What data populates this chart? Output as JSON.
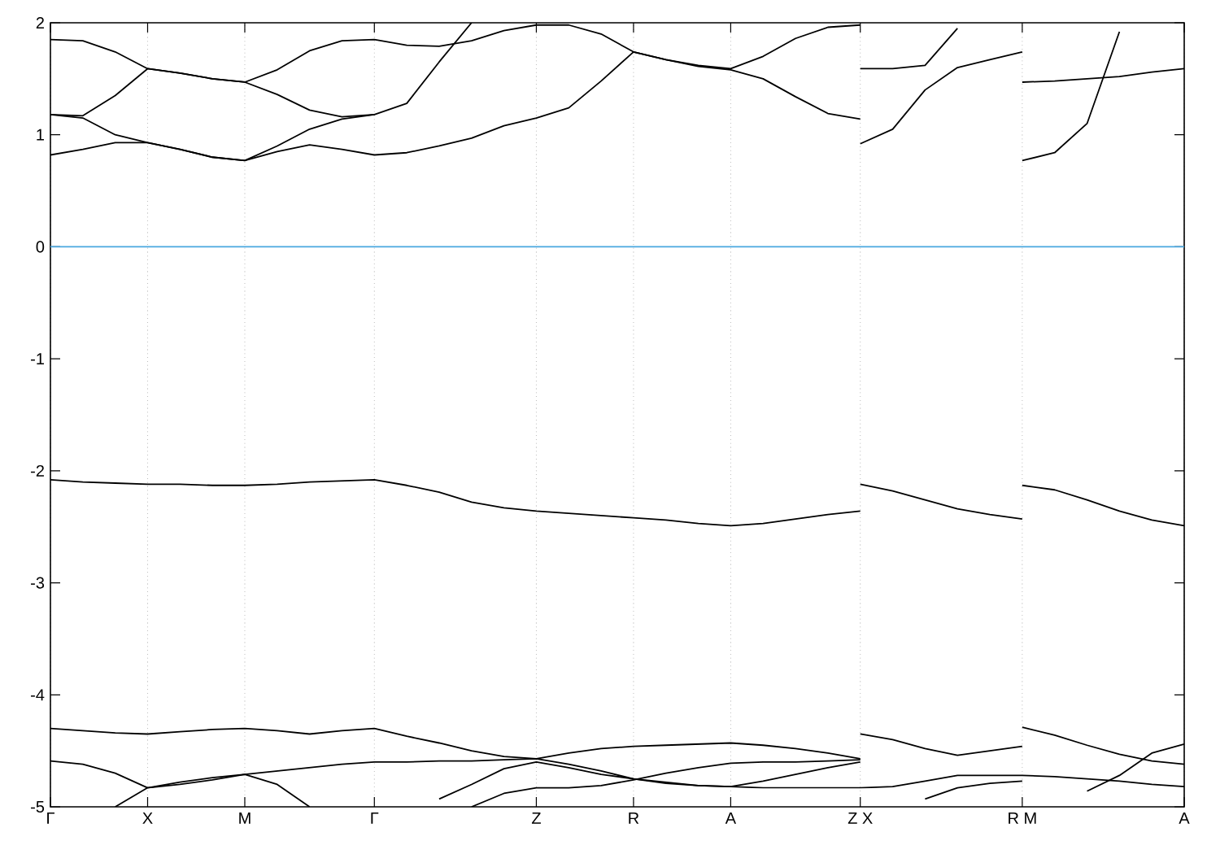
{
  "chart_data": {
    "type": "line",
    "ylim": [
      -5,
      2
    ],
    "categories": [
      "Γ",
      null,
      null,
      "X",
      null,
      null,
      "M",
      null,
      null,
      null,
      "Γ",
      null,
      null,
      null,
      null,
      "Z",
      null,
      null,
      "R",
      null,
      null,
      "A",
      null,
      null,
      null,
      "Z X",
      null,
      null,
      null,
      null,
      "R M",
      null,
      null,
      null,
      null,
      "A"
    ],
    "yticks": [
      -5,
      -4,
      -3,
      -2,
      -1,
      0,
      1,
      2
    ],
    "grid": "x",
    "ref_lines": [
      {
        "axis": "y",
        "value": 0,
        "color": "#4aa8e0"
      }
    ],
    "series": [
      {
        "color": "#000000",
        "values": [
          0.82,
          0.87,
          0.93,
          0.93,
          0.87,
          0.8,
          0.77,
          0.85,
          0.91,
          0.87,
          0.82,
          0.84,
          0.9,
          0.97,
          1.08,
          1.15,
          1.24,
          1.48,
          1.74,
          1.67,
          1.61,
          1.58,
          1.5,
          1.34,
          1.19,
          1.14,
          null,
          null,
          null,
          null,
          null,
          null,
          null,
          null,
          null,
          null
        ]
      },
      {
        "color": "#000000",
        "values": [
          null,
          null,
          null,
          null,
          null,
          null,
          null,
          null,
          null,
          null,
          null,
          null,
          null,
          null,
          null,
          null,
          null,
          null,
          null,
          null,
          null,
          null,
          null,
          null,
          null,
          0.92,
          1.05,
          1.4,
          1.6,
          1.67,
          1.74,
          null,
          null,
          null,
          null,
          null
        ]
      },
      {
        "color": "#000000",
        "values": [
          null,
          null,
          null,
          null,
          null,
          null,
          null,
          null,
          null,
          null,
          null,
          null,
          null,
          null,
          null,
          null,
          null,
          null,
          null,
          null,
          null,
          null,
          null,
          null,
          null,
          null,
          null,
          null,
          null,
          null,
          0.77,
          0.84,
          1.1,
          1.92,
          null,
          null
        ]
      },
      {
        "color": "#000000",
        "values": [
          1.18,
          1.15,
          1.0,
          0.93,
          0.87,
          0.8,
          0.77,
          0.9,
          1.05,
          1.14,
          1.18,
          1.28,
          1.65,
          2.0,
          null,
          null,
          null,
          null,
          null,
          null,
          null,
          null,
          null,
          null,
          null,
          null,
          null,
          null,
          null,
          null,
          null,
          null,
          null,
          null,
          null,
          null
        ]
      },
      {
        "color": "#000000",
        "values": [
          1.18,
          1.17,
          1.35,
          1.59,
          1.55,
          1.5,
          1.47,
          1.36,
          1.22,
          1.16,
          1.18,
          null,
          null,
          null,
          null,
          null,
          null,
          null,
          null,
          null,
          null,
          null,
          null,
          null,
          null,
          null,
          null,
          null,
          null,
          null,
          null,
          null,
          null,
          null,
          null,
          null
        ]
      },
      {
        "color": "#000000",
        "values": [
          1.85,
          1.84,
          1.74,
          1.59,
          1.55,
          1.5,
          1.47,
          1.58,
          1.75,
          1.84,
          1.85,
          1.8,
          1.79,
          1.84,
          1.93,
          1.98,
          1.98,
          1.9,
          1.74,
          1.67,
          1.62,
          1.59,
          1.7,
          1.86,
          1.96,
          1.98,
          null,
          null,
          null,
          null,
          null,
          null,
          null,
          null,
          null,
          null
        ]
      },
      {
        "color": "#000000",
        "values": [
          null,
          null,
          null,
          null,
          null,
          null,
          null,
          null,
          null,
          null,
          null,
          null,
          null,
          null,
          null,
          null,
          null,
          null,
          null,
          null,
          null,
          null,
          null,
          null,
          null,
          1.59,
          1.59,
          1.62,
          1.95,
          null,
          null,
          null,
          null,
          null,
          null,
          null
        ]
      },
      {
        "color": "#000000",
        "values": [
          null,
          null,
          null,
          null,
          null,
          null,
          null,
          null,
          null,
          null,
          null,
          null,
          null,
          null,
          null,
          null,
          null,
          null,
          null,
          null,
          null,
          null,
          null,
          null,
          null,
          null,
          null,
          null,
          null,
          null,
          1.47,
          1.48,
          1.5,
          1.52,
          1.56,
          1.59
        ]
      },
      {
        "color": "#000000",
        "values": [
          -2.08,
          -2.1,
          -2.11,
          -2.12,
          -2.12,
          -2.13,
          -2.13,
          -2.12,
          -2.1,
          -2.09,
          -2.08,
          -2.13,
          -2.19,
          -2.28,
          -2.33,
          -2.36,
          -2.38,
          -2.4,
          -2.42,
          -2.44,
          -2.47,
          -2.49,
          -2.47,
          -2.43,
          -2.39,
          -2.36,
          null,
          null,
          null,
          null,
          null,
          null,
          null,
          null,
          null,
          null
        ]
      },
      {
        "color": "#000000",
        "values": [
          null,
          null,
          null,
          null,
          null,
          null,
          null,
          null,
          null,
          null,
          null,
          null,
          null,
          null,
          null,
          null,
          null,
          null,
          null,
          null,
          null,
          null,
          null,
          null,
          null,
          -2.12,
          -2.18,
          -2.26,
          -2.34,
          -2.39,
          -2.43,
          null,
          null,
          null,
          null,
          null
        ]
      },
      {
        "color": "#000000",
        "values": [
          null,
          null,
          null,
          null,
          null,
          null,
          null,
          null,
          null,
          null,
          null,
          null,
          null,
          null,
          null,
          null,
          null,
          null,
          null,
          null,
          null,
          null,
          null,
          null,
          null,
          null,
          null,
          null,
          null,
          null,
          -2.13,
          -2.17,
          -2.26,
          -2.36,
          -2.44,
          -2.49
        ]
      },
      {
        "color": "#000000",
        "values": [
          -4.3,
          -4.32,
          -4.34,
          -4.35,
          -4.33,
          -4.31,
          -4.3,
          -4.32,
          -4.35,
          -4.32,
          -4.3,
          -4.37,
          -4.43,
          -4.5,
          -4.55,
          -4.57,
          -4.52,
          -4.48,
          -4.46,
          -4.45,
          -4.44,
          -4.43,
          -4.45,
          -4.48,
          -4.52,
          -4.57,
          null,
          null,
          null,
          null,
          null,
          null,
          null,
          null,
          null,
          null
        ]
      },
      {
        "color": "#000000",
        "values": [
          null,
          null,
          null,
          null,
          null,
          null,
          null,
          null,
          null,
          null,
          null,
          null,
          null,
          null,
          null,
          null,
          null,
          null,
          null,
          null,
          null,
          null,
          null,
          null,
          null,
          -4.35,
          -4.4,
          -4.48,
          -4.54,
          -4.5,
          -4.46,
          null,
          null,
          null,
          null,
          null
        ]
      },
      {
        "color": "#000000",
        "values": [
          null,
          null,
          null,
          null,
          null,
          null,
          null,
          null,
          null,
          null,
          null,
          null,
          null,
          null,
          null,
          null,
          null,
          null,
          null,
          null,
          null,
          null,
          null,
          null,
          null,
          null,
          null,
          null,
          null,
          null,
          -4.29,
          -4.36,
          -4.45,
          -4.53,
          -4.59,
          -4.62
        ]
      },
      {
        "color": "#000000",
        "values": [
          -4.59,
          -4.62,
          -4.7,
          -4.83,
          -4.8,
          -4.76,
          -4.71,
          -4.68,
          -4.65,
          -4.62,
          -4.6,
          -4.6,
          -4.59,
          -4.59,
          -4.58,
          -4.57,
          -4.62,
          -4.68,
          -4.75,
          -4.78,
          -4.81,
          -4.82,
          -4.83,
          -4.83,
          -4.83,
          -4.83,
          -4.82,
          -4.77,
          -4.72,
          -4.72,
          -4.72,
          -4.73,
          -4.75,
          -4.77,
          -4.8,
          -4.82
        ]
      },
      {
        "color": "#000000",
        "values": [
          null,
          null,
          -5.0,
          -4.83,
          -4.78,
          -4.74,
          -4.71,
          -4.8,
          -5.0,
          null,
          null,
          null,
          null,
          null,
          null,
          null,
          null,
          null,
          null,
          null,
          null,
          null,
          null,
          null,
          null,
          null,
          null,
          null,
          null,
          null,
          null,
          null,
          null,
          null,
          null,
          null
        ]
      },
      {
        "color": "#000000",
        "values": [
          null,
          null,
          null,
          null,
          null,
          null,
          null,
          null,
          null,
          null,
          null,
          null,
          -4.93,
          -4.8,
          -4.66,
          -4.6,
          -4.65,
          -4.71,
          -4.75,
          -4.79,
          -4.81,
          -4.82,
          -4.77,
          -4.71,
          -4.65,
          -4.6,
          null,
          null,
          null,
          null,
          null,
          null,
          null,
          null,
          null,
          null
        ]
      },
      {
        "color": "#000000",
        "values": [
          null,
          null,
          null,
          null,
          null,
          null,
          null,
          null,
          null,
          null,
          null,
          null,
          null,
          -5.0,
          -4.88,
          -4.83,
          -4.83,
          -4.81,
          -4.76,
          -4.7,
          -4.65,
          -4.61,
          -4.6,
          -4.6,
          -4.59,
          -4.58,
          null,
          null,
          null,
          null,
          null,
          null,
          null,
          null,
          null,
          null
        ]
      },
      {
        "color": "#000000",
        "values": [
          null,
          null,
          null,
          null,
          null,
          null,
          null,
          null,
          null,
          null,
          null,
          null,
          null,
          null,
          null,
          null,
          null,
          null,
          null,
          null,
          null,
          null,
          null,
          null,
          null,
          null,
          null,
          -4.93,
          -4.83,
          -4.79,
          -4.77,
          null,
          null,
          null,
          null,
          null
        ]
      },
      {
        "color": "#000000",
        "values": [
          null,
          null,
          null,
          null,
          null,
          null,
          null,
          null,
          null,
          null,
          null,
          null,
          null,
          null,
          null,
          null,
          null,
          null,
          null,
          null,
          null,
          null,
          null,
          null,
          null,
          null,
          null,
          null,
          null,
          null,
          null,
          null,
          -4.86,
          -4.72,
          -4.52,
          -4.44
        ]
      }
    ]
  }
}
